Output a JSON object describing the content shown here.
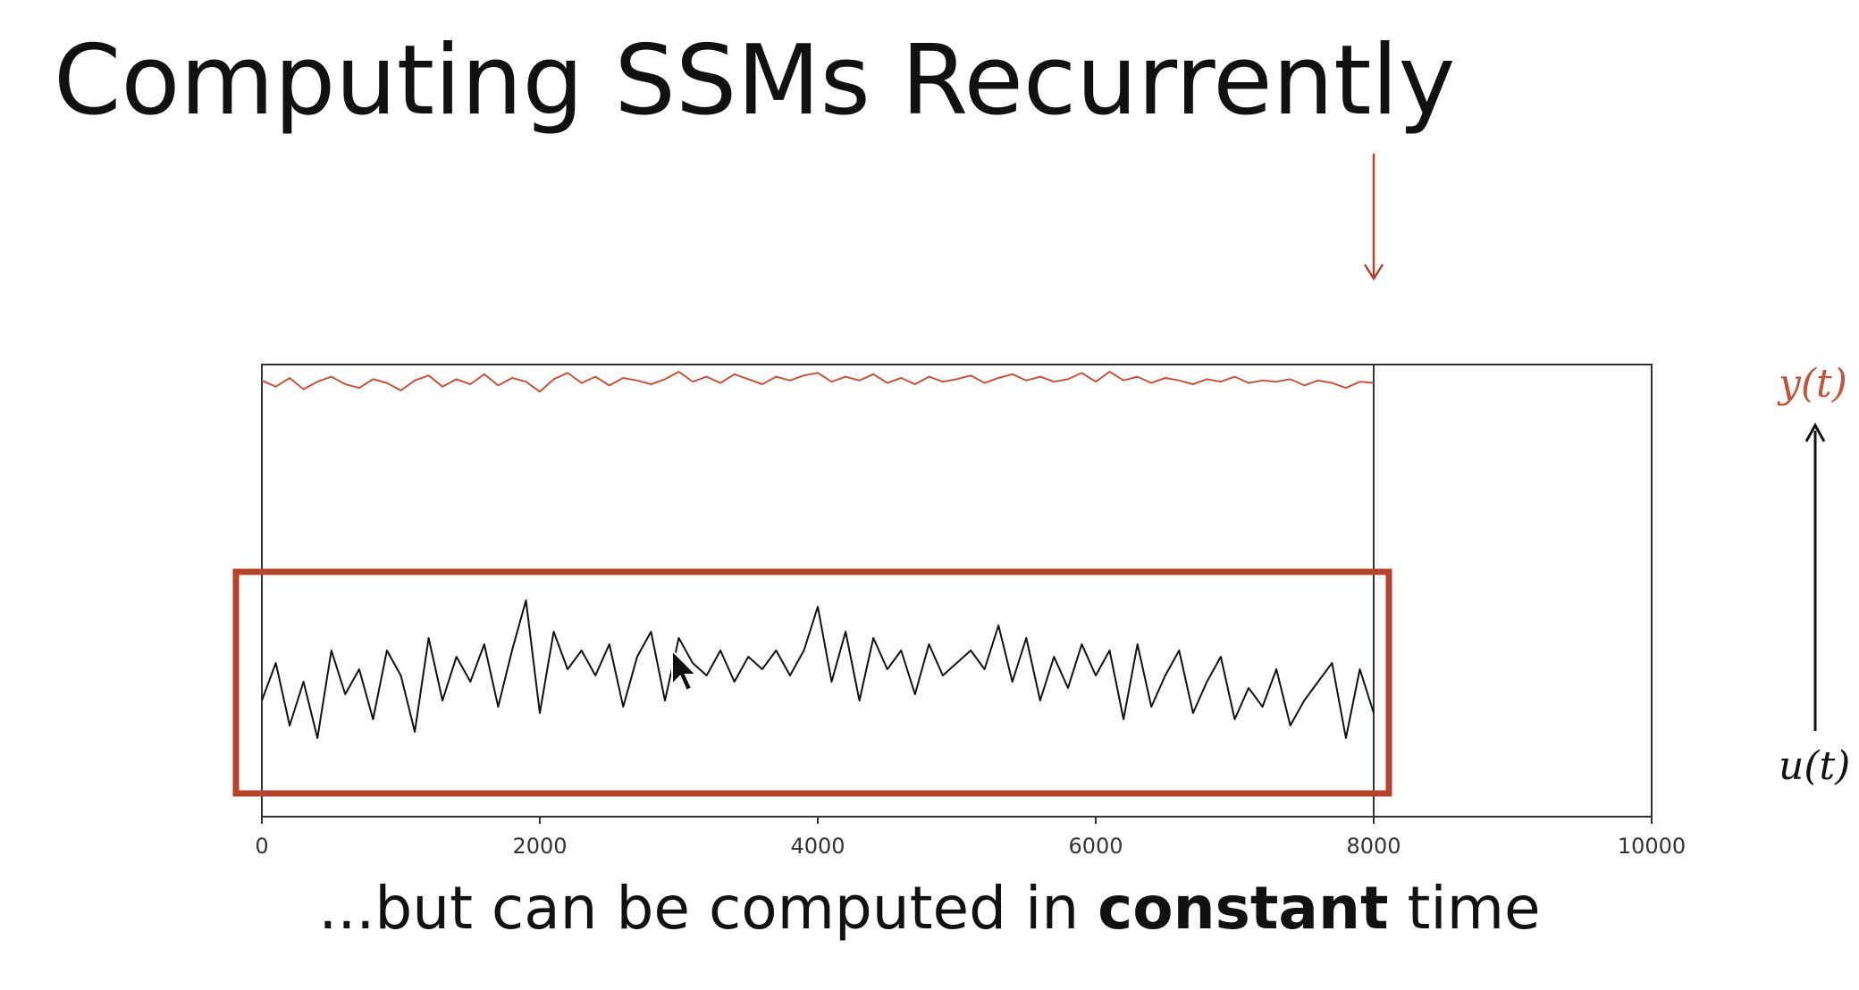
{
  "title": "Computing SSMs Recurrently",
  "caption": {
    "before": "...but can be computed in ",
    "bold": "constant",
    "after": " time"
  },
  "labels": {
    "output": "y(t)",
    "input": "u(t)"
  },
  "colors": {
    "output_series": "#c0553f",
    "input_series": "#111111",
    "highlight_box": "#b5442e",
    "pointer_arrow": "#b5442e",
    "axes": "#333333"
  },
  "icons": {
    "pointer": "down-arrow-icon",
    "flow": "up-arrow-icon",
    "cursor": "mouse-cursor-icon"
  },
  "chart_data": {
    "type": "line",
    "title": "",
    "xlabel": "",
    "ylabel": "",
    "xlim": [
      0,
      10000
    ],
    "x_ticks": [
      "0",
      "2000",
      "4000",
      "6000",
      "8000",
      "10000"
    ],
    "x_tick_values": [
      0,
      2000,
      4000,
      6000,
      8000,
      10000
    ],
    "current_step": 8000,
    "grid": false,
    "legend": "none",
    "series": [
      {
        "name": "y(t)",
        "x_start": 0,
        "x_end": 8000,
        "x_step": 100,
        "values": [
          0.3,
          -0.2,
          0.5,
          -0.4,
          0.2,
          0.6,
          0.0,
          -0.3,
          0.4,
          0.1,
          -0.5,
          0.3,
          0.7,
          -0.2,
          0.4,
          0.0,
          0.8,
          -0.1,
          0.5,
          0.2,
          -0.6,
          0.4,
          0.9,
          0.1,
          0.6,
          -0.1,
          0.5,
          0.3,
          0.0,
          0.4,
          1.0,
          0.2,
          0.6,
          0.1,
          0.8,
          0.4,
          0.0,
          0.6,
          0.3,
          0.7,
          0.9,
          0.2,
          0.6,
          0.3,
          0.8,
          0.1,
          0.5,
          0.0,
          0.6,
          0.2,
          0.4,
          0.7,
          0.1,
          0.5,
          0.8,
          0.3,
          0.6,
          0.2,
          0.4,
          0.9,
          0.2,
          1.0,
          0.3,
          0.6,
          0.1,
          0.5,
          0.3,
          0.0,
          0.4,
          0.2,
          0.6,
          0.1,
          0.3,
          0.2,
          0.4,
          -0.1,
          0.3,
          0.1,
          -0.3,
          0.2,
          0.1
        ]
      },
      {
        "name": "u(t)",
        "x_start": 0,
        "x_end": 8000,
        "x_step": 100,
        "values": [
          -0.2,
          0.4,
          -0.6,
          0.1,
          -0.8,
          0.6,
          -0.1,
          0.3,
          -0.5,
          0.6,
          0.2,
          -0.7,
          0.8,
          -0.2,
          0.5,
          0.1,
          0.7,
          -0.3,
          0.6,
          1.4,
          -0.4,
          0.9,
          0.3,
          0.6,
          0.2,
          0.7,
          -0.3,
          0.5,
          0.9,
          -0.2,
          0.8,
          0.4,
          0.2,
          0.6,
          0.1,
          0.5,
          0.3,
          0.6,
          0.2,
          0.6,
          1.3,
          0.1,
          0.9,
          -0.2,
          0.8,
          0.3,
          0.6,
          -0.1,
          0.7,
          0.2,
          0.4,
          0.6,
          0.3,
          1.0,
          0.1,
          0.8,
          -0.2,
          0.5,
          0.0,
          0.7,
          0.2,
          0.6,
          -0.5,
          0.7,
          -0.3,
          0.2,
          0.6,
          -0.4,
          0.1,
          0.5,
          -0.5,
          0.0,
          -0.3,
          0.3,
          -0.6,
          -0.2,
          0.1,
          0.4,
          -0.8,
          0.3,
          -0.4
        ]
      }
    ]
  }
}
